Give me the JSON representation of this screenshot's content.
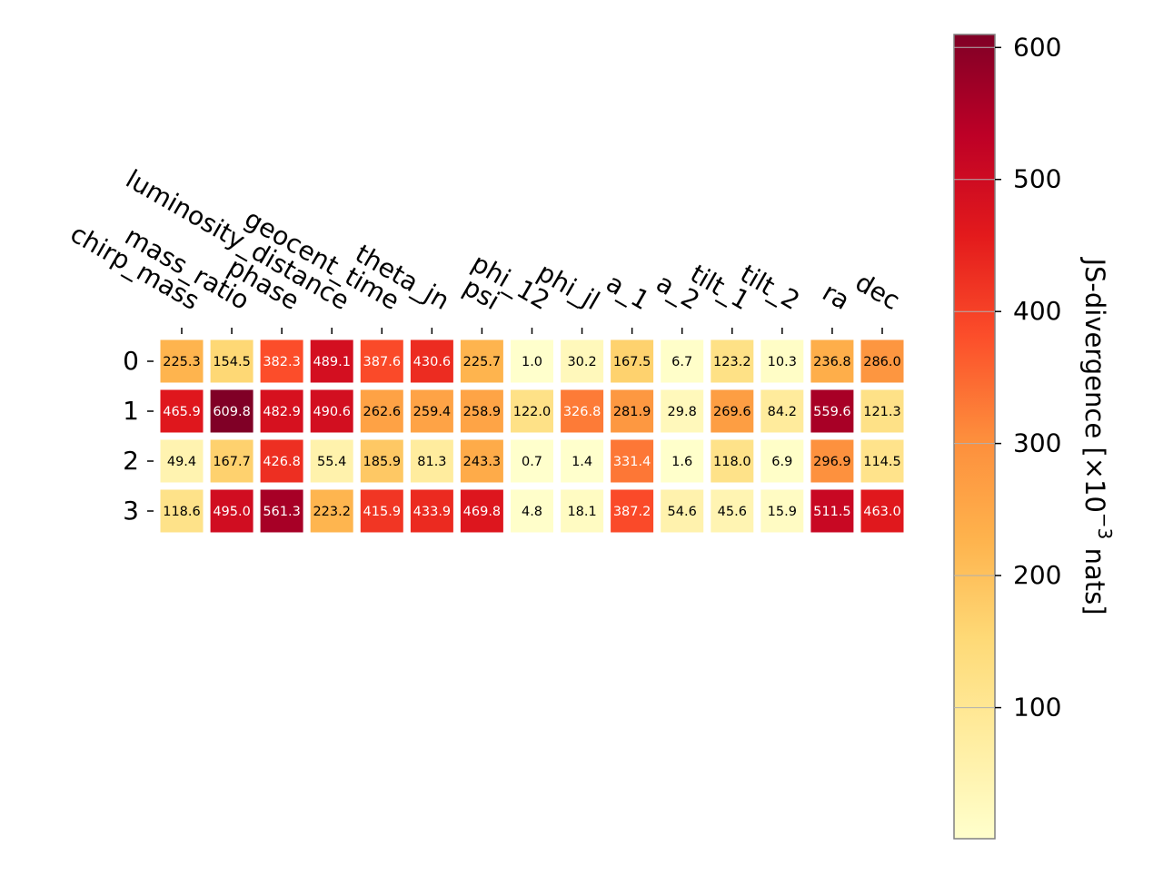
{
  "chart_data": {
    "type": "heatmap",
    "columns": [
      "chirp_mass",
      "mass_ratio",
      "phase",
      "luminosity_distance",
      "geocent_time",
      "theta_jn",
      "psi",
      "phi_12",
      "phi_jl",
      "a_1",
      "a_2",
      "tilt_1",
      "tilt_2",
      "ra",
      "dec"
    ],
    "rows": [
      "0",
      "1",
      "2",
      "3"
    ],
    "values": [
      [
        225.3,
        154.5,
        382.3,
        489.1,
        387.6,
        430.6,
        225.7,
        1.0,
        30.2,
        167.5,
        6.7,
        123.2,
        10.3,
        236.8,
        286.0
      ],
      [
        465.9,
        609.8,
        482.9,
        490.6,
        262.6,
        259.4,
        258.9,
        122.0,
        326.8,
        281.9,
        29.8,
        269.6,
        84.2,
        559.6,
        121.3
      ],
      [
        49.4,
        167.7,
        426.8,
        55.4,
        185.9,
        81.3,
        243.3,
        0.7,
        1.4,
        331.4,
        1.6,
        118.0,
        6.9,
        296.9,
        114.5
      ],
      [
        118.6,
        495.0,
        561.3,
        223.2,
        415.9,
        433.9,
        469.8,
        4.8,
        18.1,
        387.2,
        54.6,
        45.6,
        15.9,
        511.5,
        463.0
      ]
    ],
    "value_labels": [
      [
        "225.3",
        "154.5",
        "382.3",
        "489.1",
        "387.6",
        "430.6",
        "225.7",
        "1.0",
        "30.2",
        "167.5",
        "6.7",
        "123.2",
        "10.3",
        "236.8",
        "286.0"
      ],
      [
        "465.9",
        "609.8",
        "482.9",
        "490.6",
        "262.6",
        "259.4",
        "258.9",
        "122.0",
        "326.8",
        "281.9",
        "29.8",
        "269.6",
        "84.2",
        "559.6",
        "121.3"
      ],
      [
        "49.4",
        "167.7",
        "426.8",
        "55.4",
        "185.9",
        "81.3",
        "243.3",
        "0.7",
        "1.4",
        "331.4",
        "1.6",
        "118.0",
        "6.9",
        "296.9",
        "114.5"
      ],
      [
        "118.6",
        "495.0",
        "561.3",
        "223.2",
        "415.9",
        "433.9",
        "469.8",
        "4.8",
        "18.1",
        "387.2",
        "54.6",
        "45.6",
        "15.9",
        "511.5",
        "463.0"
      ]
    ],
    "colormap": "YlOrRd",
    "colormap_stops": [
      "#ffffcc",
      "#ffeda0",
      "#fed976",
      "#feb24c",
      "#fd8d3c",
      "#fc4e2a",
      "#e31a1c",
      "#bd0026",
      "#800026"
    ],
    "vmin": 0.7,
    "vmax": 609.8,
    "colorbar": {
      "label": "JS-divergence [×10",
      "label_exponent": "−3",
      "label_suffix": " nats]",
      "ticks": [
        100,
        200,
        300,
        400,
        500,
        600
      ],
      "tick_labels": [
        "100",
        "200",
        "300",
        "400",
        "500",
        "600"
      ],
      "placement": "right"
    },
    "grid": false,
    "text_light_threshold": 300,
    "text_color_dark": "#000000",
    "text_color_light": "#ffffff"
  }
}
